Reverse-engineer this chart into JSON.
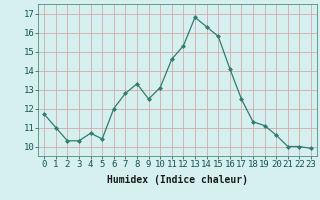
{
  "x": [
    0,
    1,
    2,
    3,
    4,
    5,
    6,
    7,
    8,
    9,
    10,
    11,
    12,
    13,
    14,
    15,
    16,
    17,
    18,
    19,
    20,
    21,
    22,
    23
  ],
  "y": [
    11.7,
    11.0,
    10.3,
    10.3,
    10.7,
    10.4,
    12.0,
    12.8,
    13.3,
    12.5,
    13.1,
    14.6,
    15.3,
    16.8,
    16.3,
    15.8,
    14.1,
    12.5,
    11.3,
    11.1,
    10.6,
    10.0,
    10.0,
    9.9
  ],
  "xlabel": "Humidex (Indice chaleur)",
  "ylim": [
    9.5,
    17.5
  ],
  "xlim": [
    -0.5,
    23.5
  ],
  "yticks": [
    10,
    11,
    12,
    13,
    14,
    15,
    16,
    17
  ],
  "xticks": [
    0,
    1,
    2,
    3,
    4,
    5,
    6,
    7,
    8,
    9,
    10,
    11,
    12,
    13,
    14,
    15,
    16,
    17,
    18,
    19,
    20,
    21,
    22,
    23
  ],
  "line_color": "#2e7d6e",
  "marker_color": "#2e7d6e",
  "bg_color": "#d6f0f0",
  "grid_color": "#d4aaaa",
  "xlabel_fontsize": 7,
  "tick_fontsize": 6.5
}
